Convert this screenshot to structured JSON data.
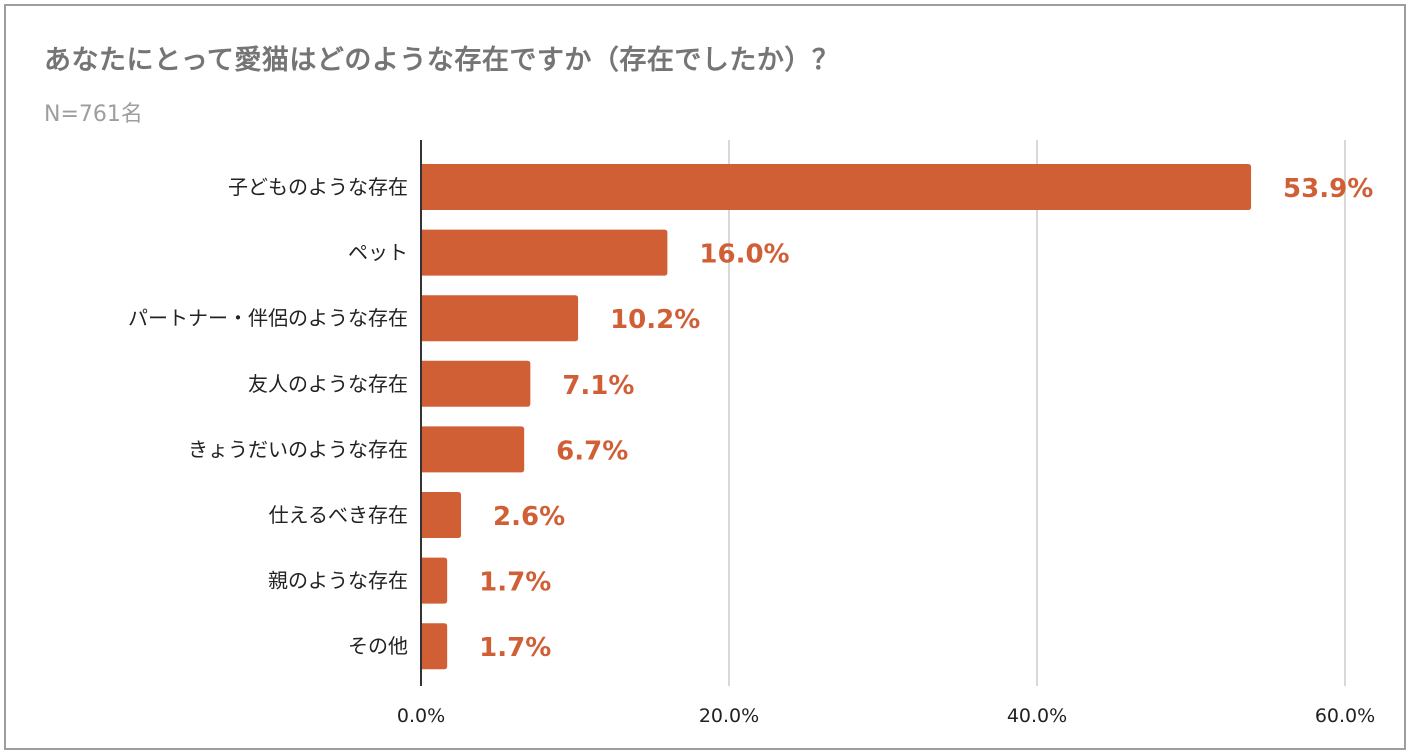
{
  "chart_data": {
    "type": "bar",
    "orientation": "horizontal",
    "title": "あなたにとって愛猫はどのような存在ですか（存在でしたか）？",
    "subtitle": "N=761名",
    "categories": [
      "子どものような存在",
      "ペット",
      "パートナー・伴侶のような存在",
      "友人のような存在",
      "きょうだいのような存在",
      "仕えるべき存在",
      "親のような存在",
      "その他"
    ],
    "values": [
      53.9,
      16.0,
      10.2,
      7.1,
      6.7,
      2.6,
      1.7,
      1.7
    ],
    "value_labels": [
      "53.9%",
      "16.0%",
      "10.2%",
      "7.1%",
      "6.7%",
      "2.6%",
      "1.7%",
      "1.7%"
    ],
    "xlim": [
      0,
      60
    ],
    "x_ticks": [
      0,
      20,
      40,
      60
    ],
    "x_tick_labels": [
      "0.0%",
      "20.0%",
      "40.0%",
      "60.0%"
    ],
    "xlabel": "",
    "ylabel": "",
    "grid": true,
    "bar_color": "#d05f36",
    "label_color": "#d05f36",
    "grid_color": "#cccccc",
    "axis_color": "#333333"
  }
}
